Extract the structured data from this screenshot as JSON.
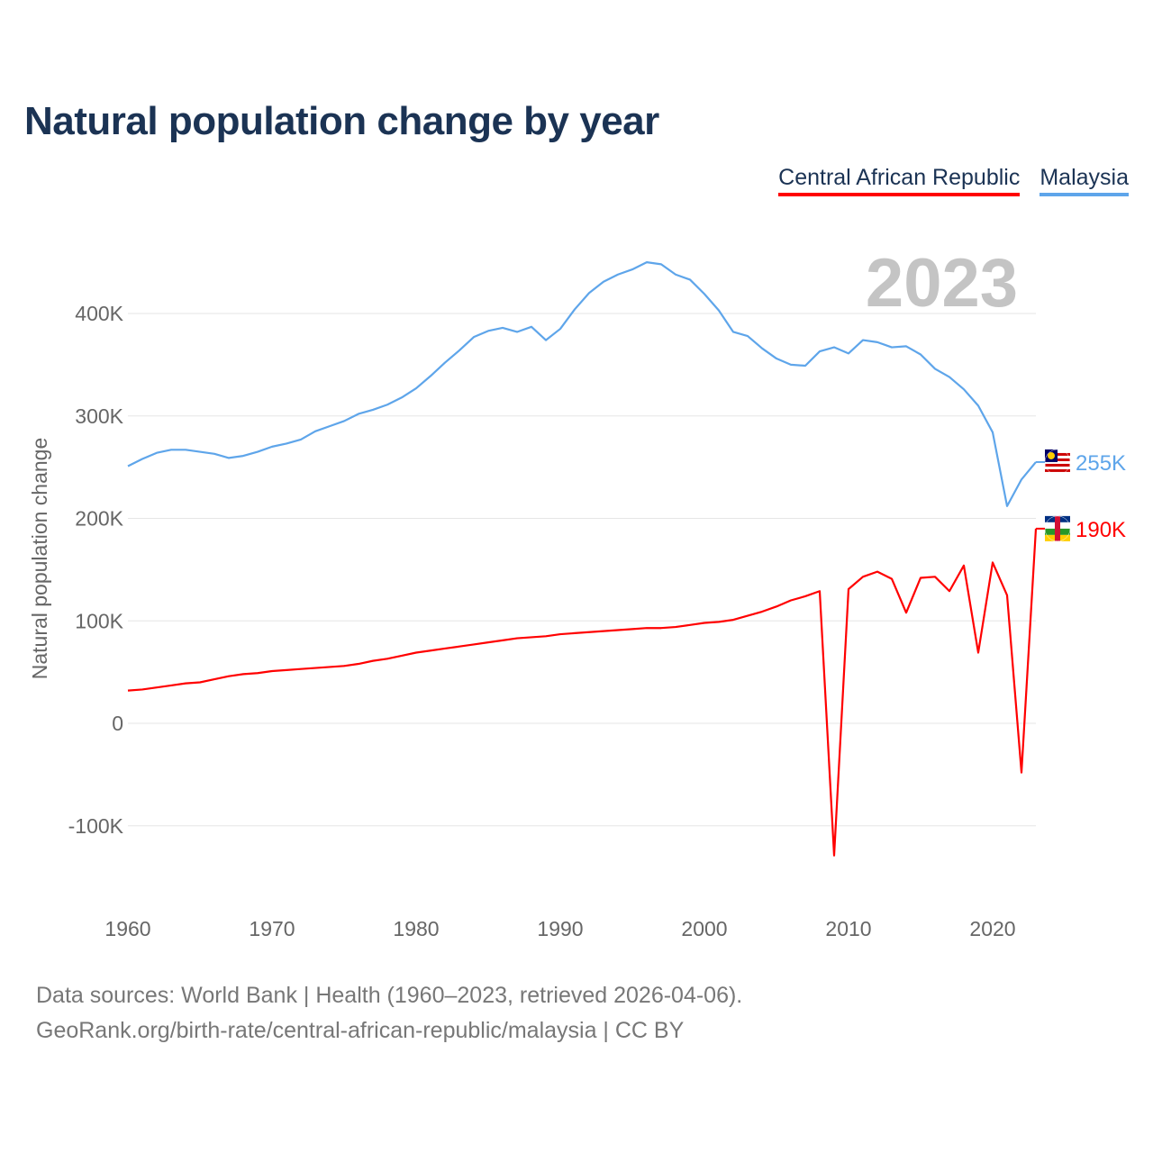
{
  "title": "Natural population change by year",
  "legend": {
    "car": "Central African Republic",
    "my": "Malaysia"
  },
  "year_label": "2023",
  "footer": {
    "line1": "Data sources: World Bank | Health (1960–2023, retrieved 2026-04-06).",
    "line2": "GeoRank.org/birth-rate/central-african-republic/malaysia | CC BY"
  },
  "chart_data": {
    "type": "line",
    "title": "Natural population change by year",
    "xlabel": "",
    "ylabel": "Natural population change",
    "xlim": [
      1960,
      2023
    ],
    "ylim": [
      -150000,
      470000
    ],
    "grid": true,
    "legend_position": "top-right",
    "x_ticks": [
      1960,
      1970,
      1980,
      1990,
      2000,
      2010,
      2020
    ],
    "x_tick_labels": [
      "1960",
      "1970",
      "1980",
      "1990",
      "2000",
      "2010",
      "2020"
    ],
    "y_ticks": [
      -100000,
      0,
      100000,
      200000,
      300000,
      400000
    ],
    "y_tick_labels": [
      "-100K",
      "0",
      "100K",
      "200K",
      "300K",
      "400K"
    ],
    "x": [
      1960,
      1961,
      1962,
      1963,
      1964,
      1965,
      1966,
      1967,
      1968,
      1969,
      1970,
      1971,
      1972,
      1973,
      1974,
      1975,
      1976,
      1977,
      1978,
      1979,
      1980,
      1981,
      1982,
      1983,
      1984,
      1985,
      1986,
      1987,
      1988,
      1989,
      1990,
      1991,
      1992,
      1993,
      1994,
      1995,
      1996,
      1997,
      1998,
      1999,
      2000,
      2001,
      2002,
      2003,
      2004,
      2005,
      2006,
      2007,
      2008,
      2009,
      2010,
      2011,
      2012,
      2013,
      2014,
      2015,
      2016,
      2017,
      2018,
      2019,
      2020,
      2021,
      2022,
      2023
    ],
    "series": [
      {
        "name": "Malaysia",
        "color": "#5ea5ea",
        "end_label": "255K",
        "values": [
          251000,
          258000,
          264000,
          267000,
          267000,
          265000,
          263000,
          259000,
          261000,
          265000,
          270000,
          273000,
          277000,
          285000,
          290000,
          295000,
          302000,
          306000,
          311000,
          318000,
          327000,
          339000,
          352000,
          364000,
          377000,
          383000,
          386000,
          382000,
          387000,
          374000,
          385000,
          404000,
          420000,
          431000,
          438000,
          443000,
          450000,
          448000,
          438000,
          433000,
          419000,
          403000,
          382000,
          378000,
          366000,
          356000,
          350000,
          349000,
          363000,
          367000,
          361000,
          374000,
          372000,
          367000,
          368000,
          360000,
          346000,
          338000,
          326000,
          310000,
          284000,
          212000,
          238000,
          255000
        ]
      },
      {
        "name": "Central African Republic",
        "color": "#ff0000",
        "end_label": "190K",
        "values": [
          32000,
          33000,
          35000,
          37000,
          39000,
          40000,
          43000,
          46000,
          48000,
          49000,
          51000,
          52000,
          53000,
          54000,
          55000,
          56000,
          58000,
          61000,
          63000,
          66000,
          69000,
          71000,
          73000,
          75000,
          77000,
          79000,
          81000,
          83000,
          84000,
          85000,
          87000,
          88000,
          89000,
          90000,
          91000,
          92000,
          93000,
          93000,
          94000,
          96000,
          98000,
          99000,
          101000,
          105000,
          109000,
          114000,
          120000,
          124000,
          129000,
          -129000,
          131000,
          143000,
          148000,
          141000,
          108000,
          142000,
          143000,
          129000,
          154000,
          69000,
          157000,
          125000,
          -48000,
          190000
        ]
      }
    ]
  }
}
